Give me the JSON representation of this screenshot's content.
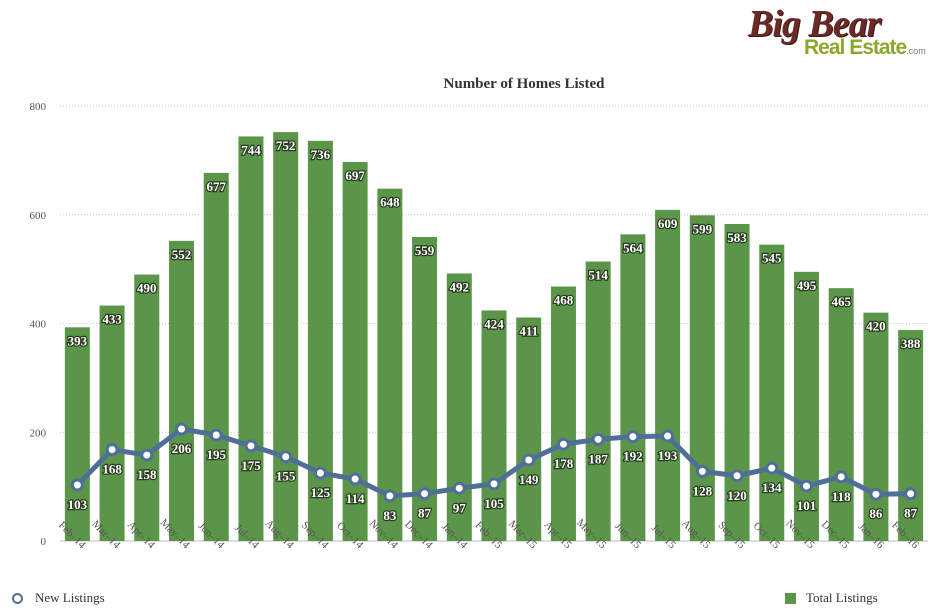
{
  "logo": {
    "top": "Big Bear",
    "bottom": "Real Estate",
    "suffix": ".com"
  },
  "colors": {
    "bar": "#5b9549",
    "line": "#4f6f97",
    "grid": "#c8c8c8"
  },
  "chart_data": {
    "type": "bar",
    "title": "Number of Homes Listed",
    "xlabel": "",
    "ylabel": "",
    "ylim": [
      0,
      800
    ],
    "yticks": [
      0,
      200,
      400,
      600,
      800
    ],
    "grid": true,
    "legend_position": "bottom",
    "categories": [
      "Feb–14",
      "Mar–14",
      "Apr–14",
      "May–14",
      "Jun–14",
      "Jul–14",
      "Aug–14",
      "Sep–14",
      "Oct–14",
      "Nov–14",
      "Dec–14",
      "Jan–14",
      "Feb–15",
      "Mar–15",
      "Apr–15",
      "May–15",
      "Jun–15",
      "Jul–15",
      "Aug–15",
      "Sep–15",
      "Oct–15",
      "Nov–15",
      "Dec–15",
      "Jan–16",
      "Feb–16"
    ],
    "series": [
      {
        "name": "Total Listings",
        "type": "bar",
        "values": [
          393,
          433,
          490,
          552,
          677,
          744,
          752,
          736,
          697,
          648,
          559,
          492,
          424,
          411,
          468,
          514,
          564,
          609,
          599,
          583,
          545,
          495,
          465,
          420,
          388
        ]
      },
      {
        "name": "New Listings",
        "type": "line",
        "values": [
          103,
          168,
          158,
          206,
          195,
          175,
          155,
          125,
          114,
          83,
          87,
          97,
          105,
          149,
          178,
          187,
          192,
          193,
          128,
          120,
          134,
          101,
          118,
          86,
          87
        ]
      }
    ]
  }
}
